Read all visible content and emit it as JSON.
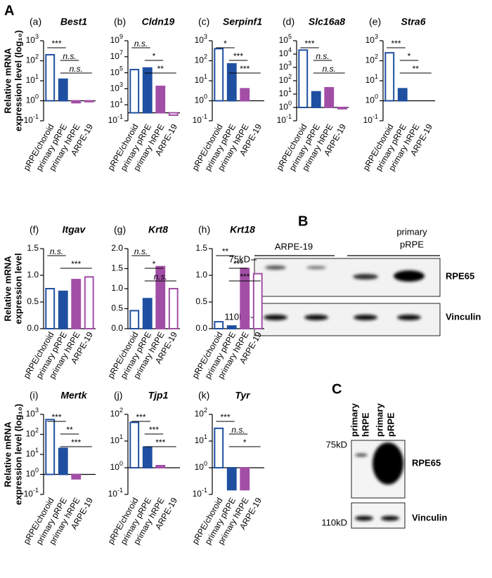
{
  "figure_labels": [
    "A",
    "B",
    "C"
  ],
  "chart_data": [
    {
      "type": "bar",
      "panel": "(a)",
      "title": "Best1",
      "ylabel": [
        "Relative mRNA",
        "expression level (log₁₀)"
      ],
      "log_scale": true,
      "categories": [
        "pRPE/choroid",
        "primary pRPE",
        "primary hRPE",
        "ARPE-19"
      ],
      "values": [
        200,
        12,
        0.8,
        0.9
      ],
      "colors": [
        "#1f4fa0",
        "#1f4fa0",
        "#a24ea6",
        "#a24ea6"
      ],
      "hollow": [
        true,
        false,
        false,
        true
      ],
      "ylim": [
        0.1,
        1000
      ],
      "yticks": [
        {
          "value": 0.1,
          "label": "10^-1"
        },
        {
          "value": 1,
          "label": "10^0"
        },
        {
          "value": 10,
          "label": "10^1"
        },
        {
          "value": 100,
          "label": "10^2"
        },
        {
          "value": 1000,
          "label": "10^3"
        }
      ],
      "annotations": [
        {
          "text": "***",
          "from": "pRPE/choroid",
          "to": "primary pRPE"
        },
        {
          "text": "n.s.",
          "from": "primary pRPE",
          "to": "primary hRPE"
        },
        {
          "text": "n.s.",
          "from": "primary pRPE",
          "to": "ARPE-19"
        }
      ]
    },
    {
      "type": "bar",
      "panel": "(b)",
      "title": "Cldn19",
      "log_scale": true,
      "categories": [
        "pRPE/choroid",
        "primary pRPE",
        "primary hRPE",
        "ARPE-19"
      ],
      "values": [
        250000,
        400000,
        2000,
        0.5
      ],
      "colors": [
        "#1f4fa0",
        "#1f4fa0",
        "#a24ea6",
        "#a24ea6"
      ],
      "hollow": [
        true,
        false,
        false,
        true
      ],
      "ylim": [
        0.1,
        1000000000
      ],
      "yticks": [
        {
          "value": 0.1,
          "label": "10^-1"
        },
        {
          "value": 10,
          "label": "10^1"
        },
        {
          "value": 1000,
          "label": "10^3"
        },
        {
          "value": 100000,
          "label": "10^5"
        },
        {
          "value": 10000000,
          "label": "10^7"
        },
        {
          "value": 1000000000,
          "label": "10^9"
        }
      ],
      "annotations": [
        {
          "text": "n.s.",
          "from": "pRPE/choroid",
          "to": "primary pRPE"
        },
        {
          "text": "*",
          "from": "primary pRPE",
          "to": "primary hRPE"
        },
        {
          "text": "**",
          "from": "primary pRPE",
          "to": "ARPE-19"
        }
      ]
    },
    {
      "type": "bar",
      "panel": "(c)",
      "title": "Serpinf1",
      "log_scale": true,
      "categories": [
        "pRPE/choroid",
        "primary pRPE",
        "primary hRPE",
        "ARPE-19"
      ],
      "values": [
        400,
        70,
        4,
        1
      ],
      "colors": [
        "#1f4fa0",
        "#1f4fa0",
        "#a24ea6",
        "#a24ea6"
      ],
      "hollow": [
        true,
        false,
        false,
        true
      ],
      "ylim": [
        0.1,
        1000
      ],
      "yticks": [
        {
          "value": 0.1,
          "label": "10^-1"
        },
        {
          "value": 1,
          "label": "10^0"
        },
        {
          "value": 10,
          "label": "10^1"
        },
        {
          "value": 100,
          "label": "10^2"
        },
        {
          "value": 1000,
          "label": "10^3"
        }
      ],
      "annotations": [
        {
          "text": "*",
          "from": "pRPE/choroid",
          "to": "primary pRPE"
        },
        {
          "text": "***",
          "from": "primary pRPE",
          "to": "primary hRPE"
        },
        {
          "text": "***",
          "from": "primary pRPE",
          "to": "ARPE-19"
        }
      ]
    },
    {
      "type": "bar",
      "panel": "(d)",
      "title": "Slc16a8",
      "log_scale": true,
      "categories": [
        "pRPE/choroid",
        "primary pRPE",
        "primary hRPE",
        "ARPE-19"
      ],
      "values": [
        20000,
        15,
        30,
        0.8
      ],
      "colors": [
        "#1f4fa0",
        "#1f4fa0",
        "#a24ea6",
        "#a24ea6"
      ],
      "hollow": [
        true,
        false,
        false,
        true
      ],
      "ylim": [
        0.1,
        100000
      ],
      "yticks": [
        {
          "value": 0.1,
          "label": "10^-1"
        },
        {
          "value": 1,
          "label": "10^0"
        },
        {
          "value": 10,
          "label": "10^1"
        },
        {
          "value": 100,
          "label": "10^2"
        },
        {
          "value": 1000,
          "label": "10^3"
        },
        {
          "value": 10000,
          "label": "10^4"
        },
        {
          "value": 100000,
          "label": "10^5"
        }
      ],
      "annotations": [
        {
          "text": "***",
          "from": "pRPE/choroid",
          "to": "primary pRPE"
        },
        {
          "text": "n.s.",
          "from": "primary pRPE",
          "to": "primary hRPE"
        },
        {
          "text": "n.s.",
          "from": "primary pRPE",
          "to": "ARPE-19"
        }
      ]
    },
    {
      "type": "bar",
      "panel": "(e)",
      "title": "Stra6",
      "log_scale": true,
      "categories": [
        "pRPE/choroid",
        "primary pRPE",
        "primary hRPE",
        "ARPE-19"
      ],
      "values": [
        250,
        4,
        1,
        1
      ],
      "colors": [
        "#1f4fa0",
        "#1f4fa0",
        "#a24ea6",
        "#a24ea6"
      ],
      "hollow": [
        true,
        false,
        false,
        true
      ],
      "ylim": [
        0.1,
        1000
      ],
      "yticks": [
        {
          "value": 0.1,
          "label": "10^-1"
        },
        {
          "value": 1,
          "label": "10^0"
        },
        {
          "value": 10,
          "label": "10^1"
        },
        {
          "value": 100,
          "label": "10^2"
        },
        {
          "value": 1000,
          "label": "10^3"
        }
      ],
      "annotations": [
        {
          "text": "***",
          "from": "pRPE/choroid",
          "to": "primary pRPE"
        },
        {
          "text": "*",
          "from": "primary pRPE",
          "to": "primary hRPE"
        },
        {
          "text": "**",
          "from": "primary pRPE",
          "to": "ARPE-19"
        }
      ]
    },
    {
      "type": "bar",
      "panel": "(f)",
      "title": "Itgav",
      "ylabel": [
        "Relative mRNA",
        "expression level"
      ],
      "log_scale": false,
      "categories": [
        "pRPE/choroid",
        "primary pRPE",
        "primary hRPE",
        "ARPE-19"
      ],
      "values": [
        0.75,
        0.7,
        0.92,
        0.97
      ],
      "colors": [
        "#1f4fa0",
        "#1f4fa0",
        "#a24ea6",
        "#a24ea6"
      ],
      "hollow": [
        true,
        false,
        false,
        true
      ],
      "ylim": [
        0,
        1.5
      ],
      "yticks": [
        {
          "value": 0,
          "label": "0.0"
        },
        0.5,
        {
          "value": 1,
          "label": "1.0"
        },
        1.5
      ],
      "annotations": [
        {
          "text": "n.s.",
          "from": "pRPE/choroid",
          "to": "primary pRPE"
        },
        {
          "text": "***",
          "from": "primary pRPE",
          "to": "ARPE-19"
        }
      ]
    },
    {
      "type": "bar",
      "panel": "(g)",
      "title": "Krt8",
      "log_scale": false,
      "categories": [
        "pRPE/choroid",
        "primary pRPE",
        "primary hRPE",
        "ARPE-19"
      ],
      "values": [
        0.45,
        0.75,
        1.55,
        1.0
      ],
      "colors": [
        "#1f4fa0",
        "#1f4fa0",
        "#a24ea6",
        "#a24ea6"
      ],
      "hollow": [
        true,
        false,
        false,
        true
      ],
      "ylim": [
        0,
        2
      ],
      "yticks": [
        {
          "value": 0,
          "label": "0.0"
        },
        0.5,
        {
          "value": 1,
          "label": "1.0"
        },
        1.5,
        {
          "value": 2,
          "label": "2.0"
        }
      ],
      "annotations": [
        {
          "text": "n.s.",
          "from": "pRPE/choroid",
          "to": "primary pRPE"
        },
        {
          "text": "*",
          "from": "primary pRPE",
          "to": "primary hRPE"
        },
        {
          "text": "n.s.",
          "from": "primary pRPE",
          "to": "ARPE-19"
        }
      ]
    },
    {
      "type": "bar",
      "panel": "(h)",
      "title": "Krt18",
      "log_scale": false,
      "categories": [
        "pRPE/choroid",
        "primary pRPE",
        "primary hRPE",
        "ARPE-19"
      ],
      "values": [
        0.13,
        0.05,
        1.13,
        1.03
      ],
      "colors": [
        "#1f4fa0",
        "#1f4fa0",
        "#a24ea6",
        "#a24ea6"
      ],
      "hollow": [
        true,
        false,
        false,
        true
      ],
      "ylim": [
        0,
        1.5
      ],
      "yticks": [
        {
          "value": 0,
          "label": "0.0"
        },
        0.5,
        {
          "value": 1,
          "label": "1.0"
        },
        1.5
      ],
      "annotations": [
        {
          "text": "**",
          "from": "pRPE/choroid",
          "to": "primary pRPE"
        },
        {
          "text": "***",
          "from": "primary pRPE",
          "to": "primary hRPE"
        },
        {
          "text": "***",
          "from": "primary pRPE",
          "to": "ARPE-19"
        }
      ]
    },
    {
      "type": "bar",
      "panel": "(i)",
      "title": "Mertk",
      "ylabel": [
        "Relative mRNA",
        "expression level (log₁₀)"
      ],
      "log_scale": true,
      "categories": [
        "pRPE/choroid",
        "primary pRPE",
        "primary hRPE",
        "ARPE-19"
      ],
      "values": [
        550,
        20,
        0.6,
        1.0
      ],
      "colors": [
        "#1f4fa0",
        "#1f4fa0",
        "#a24ea6",
        "#a24ea6"
      ],
      "hollow": [
        true,
        false,
        false,
        true
      ],
      "ylim": [
        0.1,
        1000
      ],
      "yticks": [
        {
          "value": 0.1,
          "label": "10^-1"
        },
        {
          "value": 1,
          "label": "10^0"
        },
        {
          "value": 10,
          "label": "10^1"
        },
        {
          "value": 100,
          "label": "10^2"
        },
        {
          "value": 1000,
          "label": "10^3"
        }
      ],
      "annotations": [
        {
          "text": "***",
          "from": "pRPE/choroid",
          "to": "primary pRPE"
        },
        {
          "text": "**",
          "from": "primary pRPE",
          "to": "primary hRPE"
        },
        {
          "text": "***",
          "from": "primary pRPE",
          "to": "ARPE-19"
        }
      ]
    },
    {
      "type": "bar",
      "panel": "(j)",
      "title": "Tjp1",
      "log_scale": true,
      "categories": [
        "pRPE/choroid",
        "primary pRPE",
        "primary hRPE",
        "ARPE-19"
      ],
      "values": [
        50,
        6,
        1.2,
        1.0
      ],
      "colors": [
        "#1f4fa0",
        "#1f4fa0",
        "#a24ea6",
        "#a24ea6"
      ],
      "hollow": [
        true,
        false,
        false,
        true
      ],
      "ylim": [
        0.1,
        100
      ],
      "yticks": [
        {
          "value": 0.1,
          "label": "10^-1"
        },
        {
          "value": 1,
          "label": "10^0"
        },
        {
          "value": 10,
          "label": "10^1"
        },
        {
          "value": 100,
          "label": "10^2"
        }
      ],
      "annotations": [
        {
          "text": "***",
          "from": "pRPE/choroid",
          "to": "primary pRPE"
        },
        {
          "text": "***",
          "from": "primary pRPE",
          "to": "primary hRPE"
        },
        {
          "text": "***",
          "from": "primary pRPE",
          "to": "ARPE-19"
        }
      ]
    },
    {
      "type": "bar",
      "panel": "(k)",
      "title": "Tyr",
      "log_scale": true,
      "categories": [
        "pRPE/choroid",
        "primary pRPE",
        "primary hRPE",
        "ARPE-19"
      ],
      "values": [
        30,
        0.15,
        0.15,
        1.0
      ],
      "colors": [
        "#1f4fa0",
        "#1f4fa0",
        "#a24ea6",
        "#a24ea6"
      ],
      "hollow": [
        true,
        false,
        false,
        true
      ],
      "ylim": [
        0.1,
        100
      ],
      "yticks": [
        {
          "value": 0.1,
          "label": "10^-1"
        },
        {
          "value": 1,
          "label": "10^0"
        },
        {
          "value": 10,
          "label": "10^1"
        },
        {
          "value": 100,
          "label": "10^2"
        }
      ],
      "annotations": [
        {
          "text": "***",
          "from": "pRPE/choroid",
          "to": "primary pRPE"
        },
        {
          "text": "n.s.",
          "from": "primary pRPE",
          "to": "primary hRPE"
        },
        {
          "text": "*",
          "from": "primary pRPE",
          "to": "ARPE-19"
        }
      ]
    }
  ],
  "blots": {
    "B": {
      "groups": [
        [
          "ARPE-19"
        ],
        [
          "primary",
          "pRPE"
        ]
      ],
      "markers": [
        "75kD",
        "110kD"
      ],
      "proteins": [
        "RPE65",
        "Vinculin"
      ]
    },
    "C": {
      "lanes": [
        [
          "primary",
          "hRPE"
        ],
        [
          "primary",
          "pRPE"
        ]
      ],
      "markers": [
        "75kD",
        "110kD"
      ],
      "proteins": [
        "RPE65",
        "Vinculin"
      ]
    }
  }
}
